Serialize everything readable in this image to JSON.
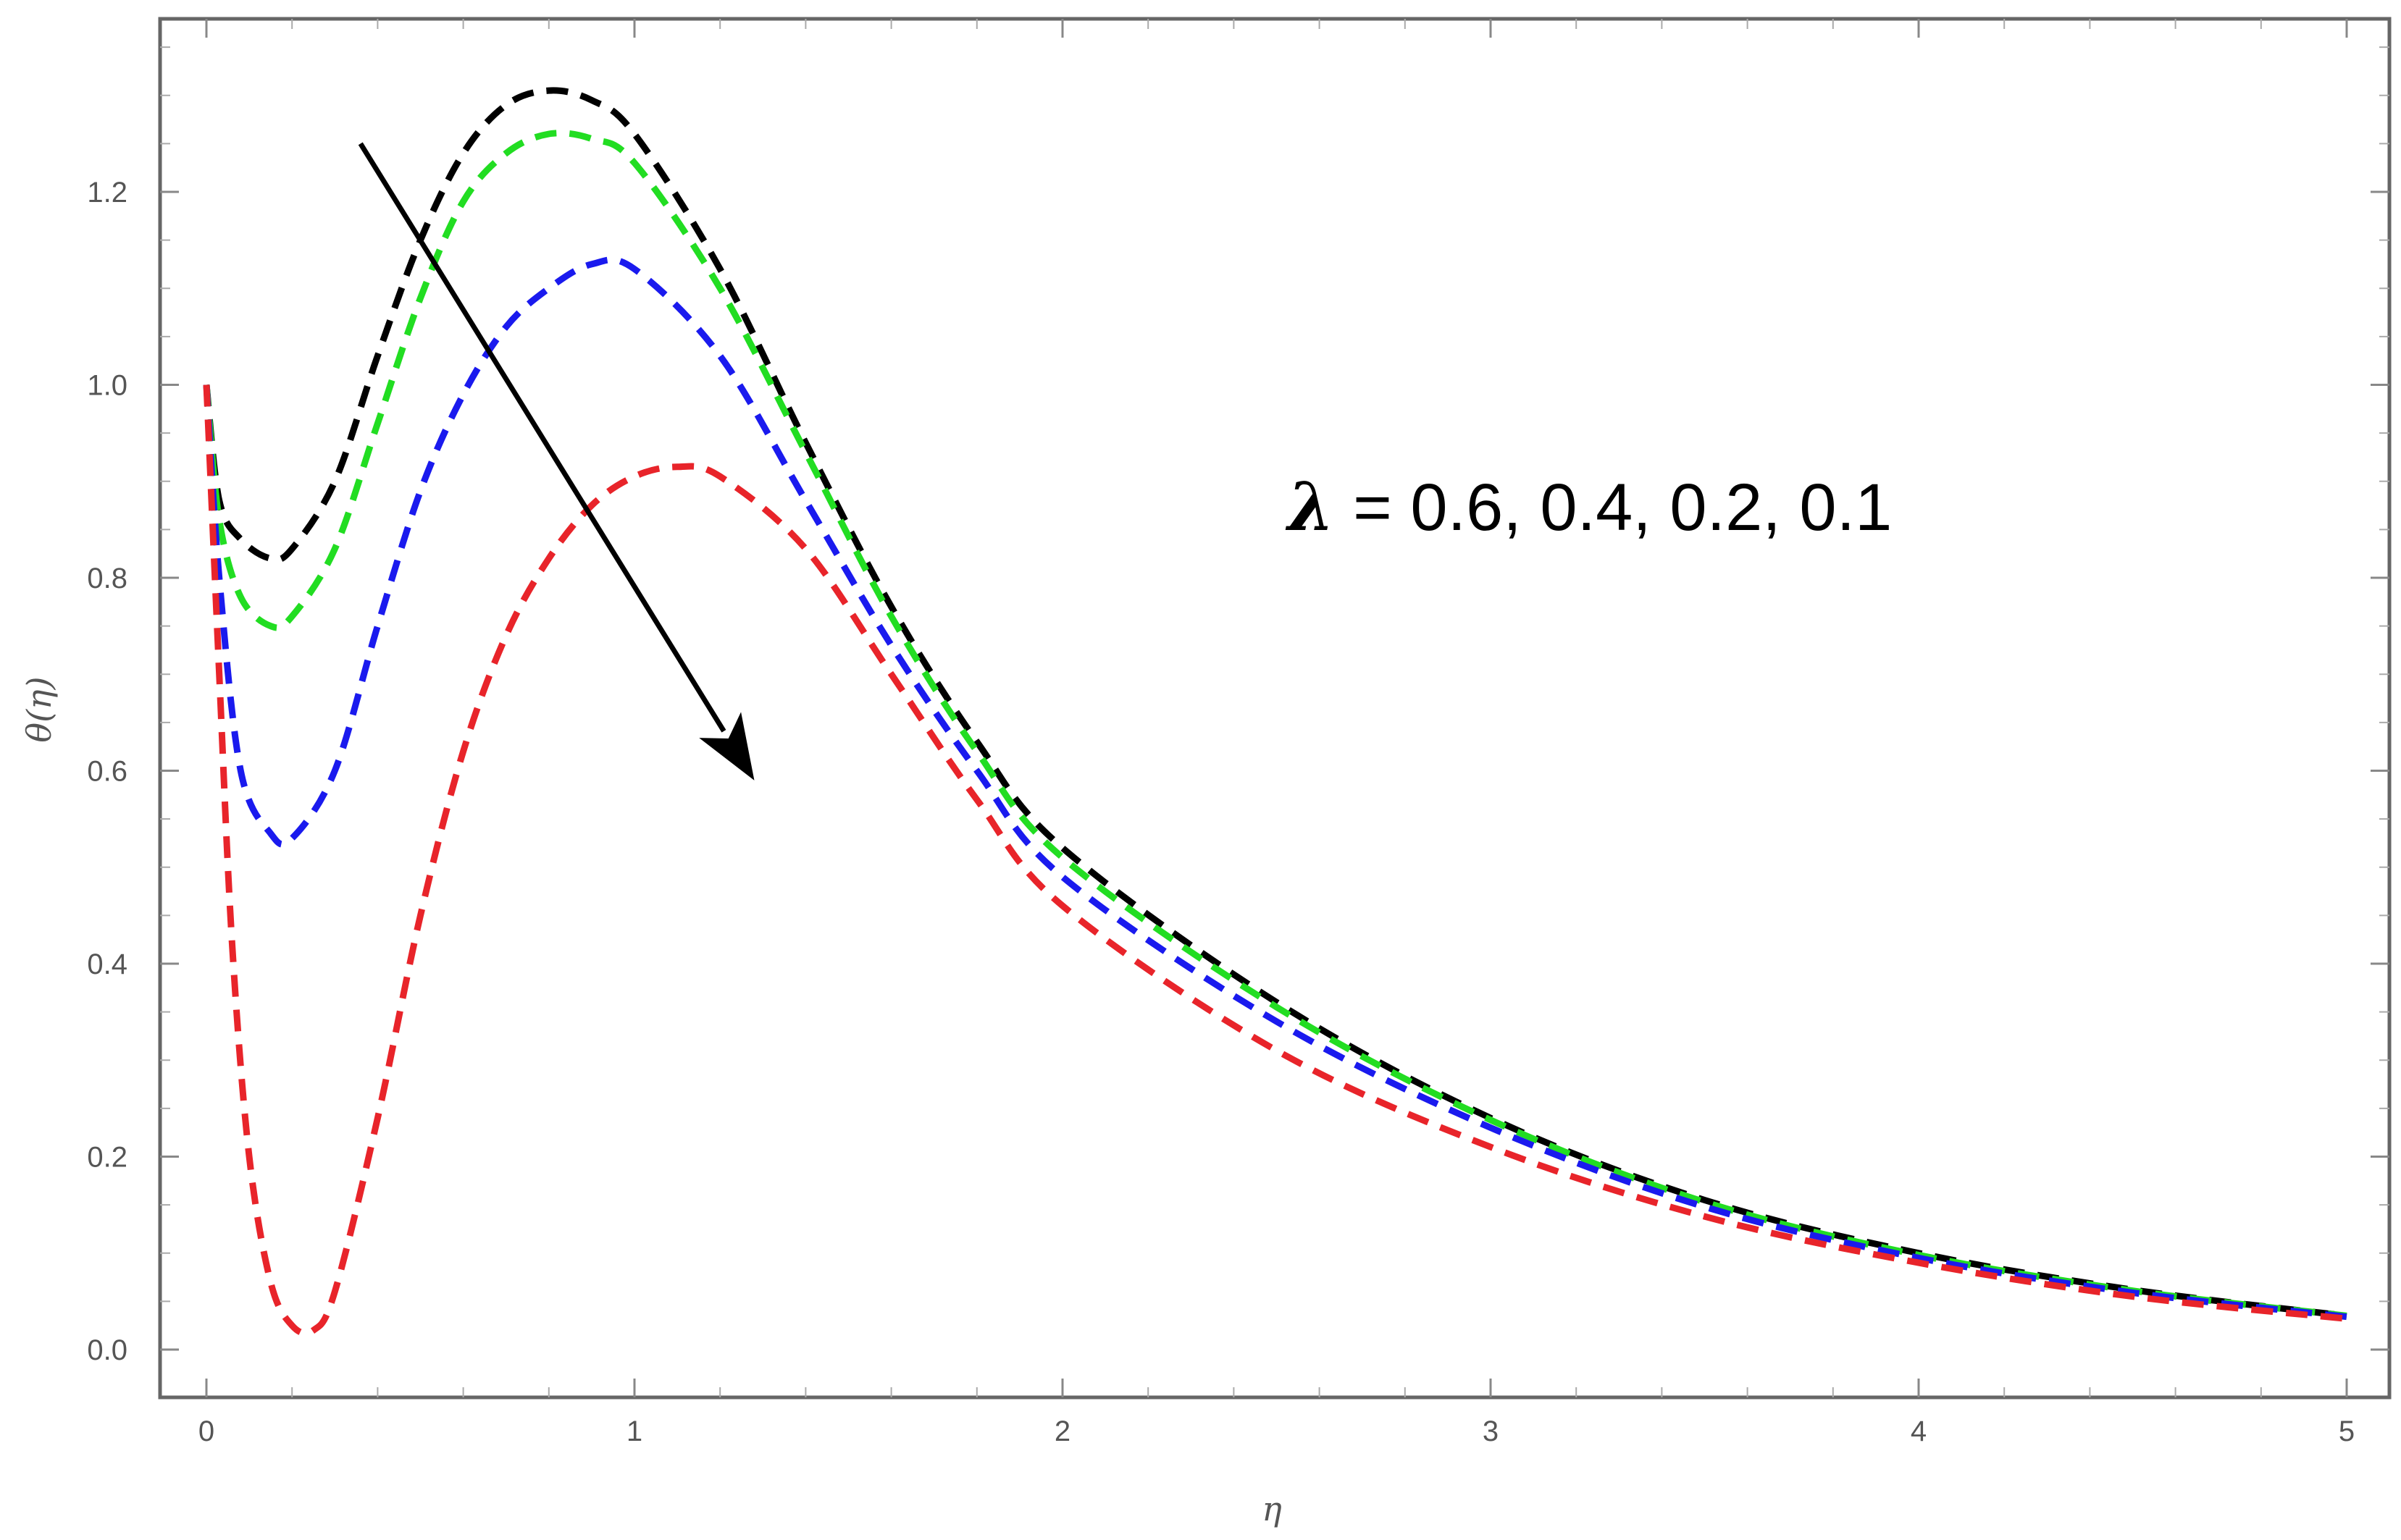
{
  "chart_data": {
    "type": "line",
    "xlabel": "η",
    "ylabel": "θ(η)",
    "xlim": [
      0,
      5.1
    ],
    "ylim": [
      -0.05,
      1.38
    ],
    "xticks": [
      0,
      1,
      2,
      3,
      4,
      5
    ],
    "yticks": [
      0.0,
      0.2,
      0.4,
      0.6,
      0.8,
      1.0,
      1.2
    ],
    "xtick_labels": [
      "0",
      "1",
      "2",
      "3",
      "4",
      "5"
    ],
    "ytick_labels": [
      "0.0",
      "0.2",
      "0.4",
      "0.6",
      "0.8",
      "1.0",
      "1.2"
    ],
    "grid": false,
    "line_style": "dashed",
    "annotation": {
      "symbol": "λ",
      "text": " = 0.6, 0.4, 0.2, 0.1"
    },
    "arrow": {
      "from": [
        0.36,
        1.25
      ],
      "to": [
        1.28,
        0.59
      ]
    },
    "series": [
      {
        "color": "#000000",
        "x": [
          0,
          0.03,
          0.08,
          0.15,
          0.2,
          0.3,
          0.4,
          0.5,
          0.6,
          0.7,
          0.8,
          0.9,
          1.0,
          1.2,
          1.4,
          1.6,
          1.8,
          2.0,
          2.5,
          3.0,
          3.5,
          4.0,
          4.5,
          5.0
        ],
        "y": [
          1.0,
          0.88,
          0.84,
          0.82,
          0.83,
          0.9,
          1.03,
          1.15,
          1.24,
          1.29,
          1.305,
          1.295,
          1.26,
          1.12,
          0.94,
          0.77,
          0.63,
          0.52,
          0.36,
          0.24,
          0.155,
          0.1,
          0.062,
          0.035
        ]
      },
      {
        "color": "#22dd22",
        "x": [
          0,
          0.03,
          0.08,
          0.15,
          0.2,
          0.3,
          0.4,
          0.5,
          0.6,
          0.7,
          0.8,
          0.9,
          1.0,
          1.2,
          1.4,
          1.6,
          1.8,
          2.0,
          2.5,
          3.0,
          3.5,
          4.0,
          4.5,
          5.0
        ],
        "y": [
          1.0,
          0.86,
          0.78,
          0.75,
          0.76,
          0.83,
          0.96,
          1.09,
          1.19,
          1.24,
          1.26,
          1.255,
          1.23,
          1.1,
          0.93,
          0.76,
          0.62,
          0.51,
          0.355,
          0.238,
          0.153,
          0.098,
          0.061,
          0.035
        ]
      },
      {
        "color": "#1a1aee",
        "x": [
          0,
          0.03,
          0.08,
          0.15,
          0.2,
          0.3,
          0.4,
          0.5,
          0.6,
          0.7,
          0.8,
          0.9,
          1.0,
          1.2,
          1.4,
          1.6,
          1.8,
          2.0,
          2.5,
          3.0,
          3.5,
          4.0,
          4.5,
          5.0
        ],
        "y": [
          1.0,
          0.8,
          0.6,
          0.535,
          0.53,
          0.6,
          0.75,
          0.89,
          0.99,
          1.06,
          1.1,
          1.125,
          1.12,
          1.03,
          0.88,
          0.73,
          0.6,
          0.49,
          0.34,
          0.23,
          0.148,
          0.095,
          0.059,
          0.034
        ]
      },
      {
        "color": "#e8242a",
        "x": [
          0,
          0.03,
          0.06,
          0.1,
          0.15,
          0.2,
          0.25,
          0.3,
          0.4,
          0.5,
          0.6,
          0.7,
          0.8,
          0.9,
          1.0,
          1.1,
          1.2,
          1.4,
          1.6,
          1.8,
          2.0,
          2.5,
          3.0,
          3.5,
          4.0,
          4.5,
          5.0
        ],
        "y": [
          1.0,
          0.7,
          0.42,
          0.2,
          0.07,
          0.025,
          0.02,
          0.06,
          0.24,
          0.45,
          0.62,
          0.74,
          0.82,
          0.875,
          0.905,
          0.915,
          0.905,
          0.83,
          0.7,
          0.57,
          0.46,
          0.31,
          0.21,
          0.138,
          0.09,
          0.055,
          0.032
        ]
      }
    ]
  }
}
